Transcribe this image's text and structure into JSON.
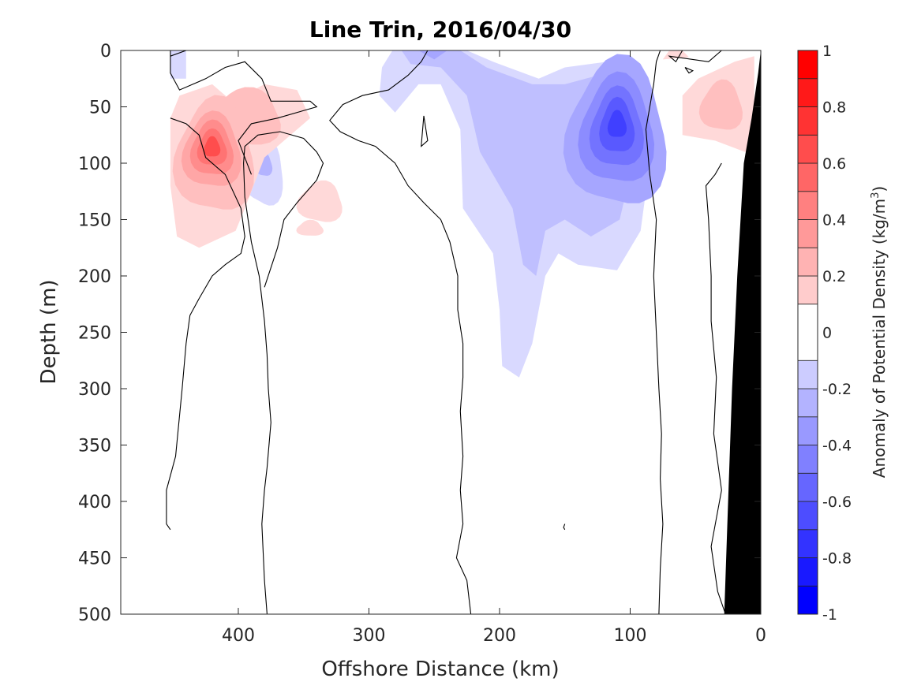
{
  "chart_data": {
    "type": "heatmap",
    "title": "Line Trin, 2016/04/30",
    "xlabel": "Offshore Distance (km)",
    "ylabel": "Depth (m)",
    "xlim": [
      490,
      0
    ],
    "ylim": [
      0,
      500
    ],
    "x_ticks": [
      400,
      300,
      200,
      100,
      0
    ],
    "y_ticks": [
      0,
      50,
      100,
      150,
      200,
      250,
      300,
      350,
      400,
      450,
      500
    ],
    "colorbar": {
      "label": "Anomaly of Potential Density (kg/m",
      "label_sup": "3",
      "label_end": ")",
      "clim": [
        -1,
        1
      ],
      "ticks": [
        1,
        0.8,
        0.6,
        0.4,
        0.2,
        0,
        -0.2,
        -0.4,
        -0.6,
        -0.8,
        -1
      ],
      "tick_labels": [
        "1",
        "0.8",
        "0.6",
        "0.4",
        "0.2",
        "0",
        "-0.2",
        "-0.4",
        "-0.6",
        "-0.8",
        "-1"
      ],
      "levels": [
        -1,
        -0.9,
        -0.8,
        -0.7,
        -0.6,
        -0.5,
        -0.4,
        -0.3,
        -0.2,
        -0.1,
        0.1,
        0.2,
        0.3,
        0.4,
        0.5,
        0.6,
        0.7,
        0.8,
        0.9,
        1
      ]
    },
    "features": [
      {
        "name": "positive anomaly core",
        "x_km": 420,
        "depth_m": 85,
        "peak": 0.75
      },
      {
        "name": "positive anomaly upper shelf",
        "x_km": 385,
        "depth_m": 55,
        "peak": 0.3
      },
      {
        "name": "positive anomaly small",
        "x_km": 335,
        "depth_m": 130,
        "peak": 0.25
      },
      {
        "name": "positive anomaly near coast",
        "x_km": 30,
        "depth_m": 50,
        "peak": 0.25
      },
      {
        "name": "negative anomaly core",
        "x_km": 110,
        "depth_m": 65,
        "peak": -0.75
      },
      {
        "name": "negative anomaly surface",
        "x_km": 270,
        "depth_m": 10,
        "peak": -0.35
      },
      {
        "name": "negative anomaly small eddy",
        "x_km": 380,
        "depth_m": 105,
        "peak": -0.35
      },
      {
        "name": "negative anomaly tongue",
        "x_km": 185,
        "depth_m": 180,
        "peak": -0.25
      }
    ],
    "bathymetry": [
      [
        0,
        0
      ],
      [
        2,
        20
      ],
      [
        7,
        60
      ],
      [
        13,
        100
      ],
      [
        18,
        200
      ],
      [
        22,
        300
      ],
      [
        25,
        400
      ],
      [
        28,
        500
      ]
    ]
  },
  "colors": {
    "positive_max": "#ff0000",
    "negative_max": "#0000ff",
    "neutral": "#ffffff",
    "land": "#000000",
    "contour": "#000000"
  }
}
